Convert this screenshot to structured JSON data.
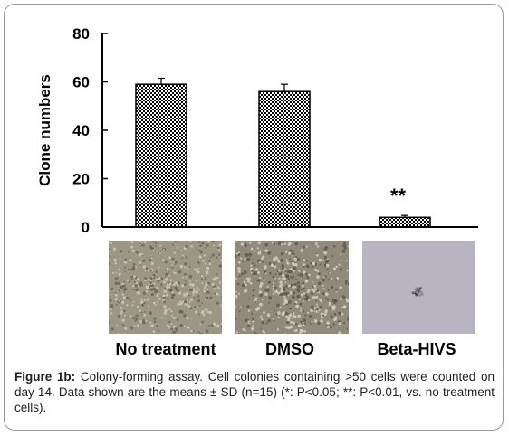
{
  "chart_data": {
    "type": "bar",
    "categories": [
      "No treatment",
      "DMSO",
      "Beta-HIVS"
    ],
    "values": [
      59,
      56,
      4
    ],
    "errors": [
      2.5,
      3,
      0.8
    ],
    "significance": [
      "",
      "",
      "**"
    ],
    "ylabel": "Clone numbers",
    "xlabel": "",
    "ylim": [
      0,
      80
    ],
    "yticks": [
      0,
      20,
      40,
      60,
      80
    ],
    "grid": false,
    "bar_fill": "checkered",
    "colors": {
      "bar_dark": "#000000",
      "bar_light": "#ffffff",
      "axis": "#000000"
    }
  },
  "photos": {
    "labels": [
      "No treatment",
      "DMSO",
      "Beta-HIVS"
    ],
    "colors": [
      "#9c9686",
      "#8f8a7c",
      "#b9b4c2"
    ]
  },
  "caption": {
    "label": "Figure 1b:",
    "text": " Colony-forming assay. Cell colonies containing >50 cells were counted on day 14. Data shown are the means ± SD (n=15) (*: P<0.05; **: P<0.01, vs. no treatment cells)."
  }
}
